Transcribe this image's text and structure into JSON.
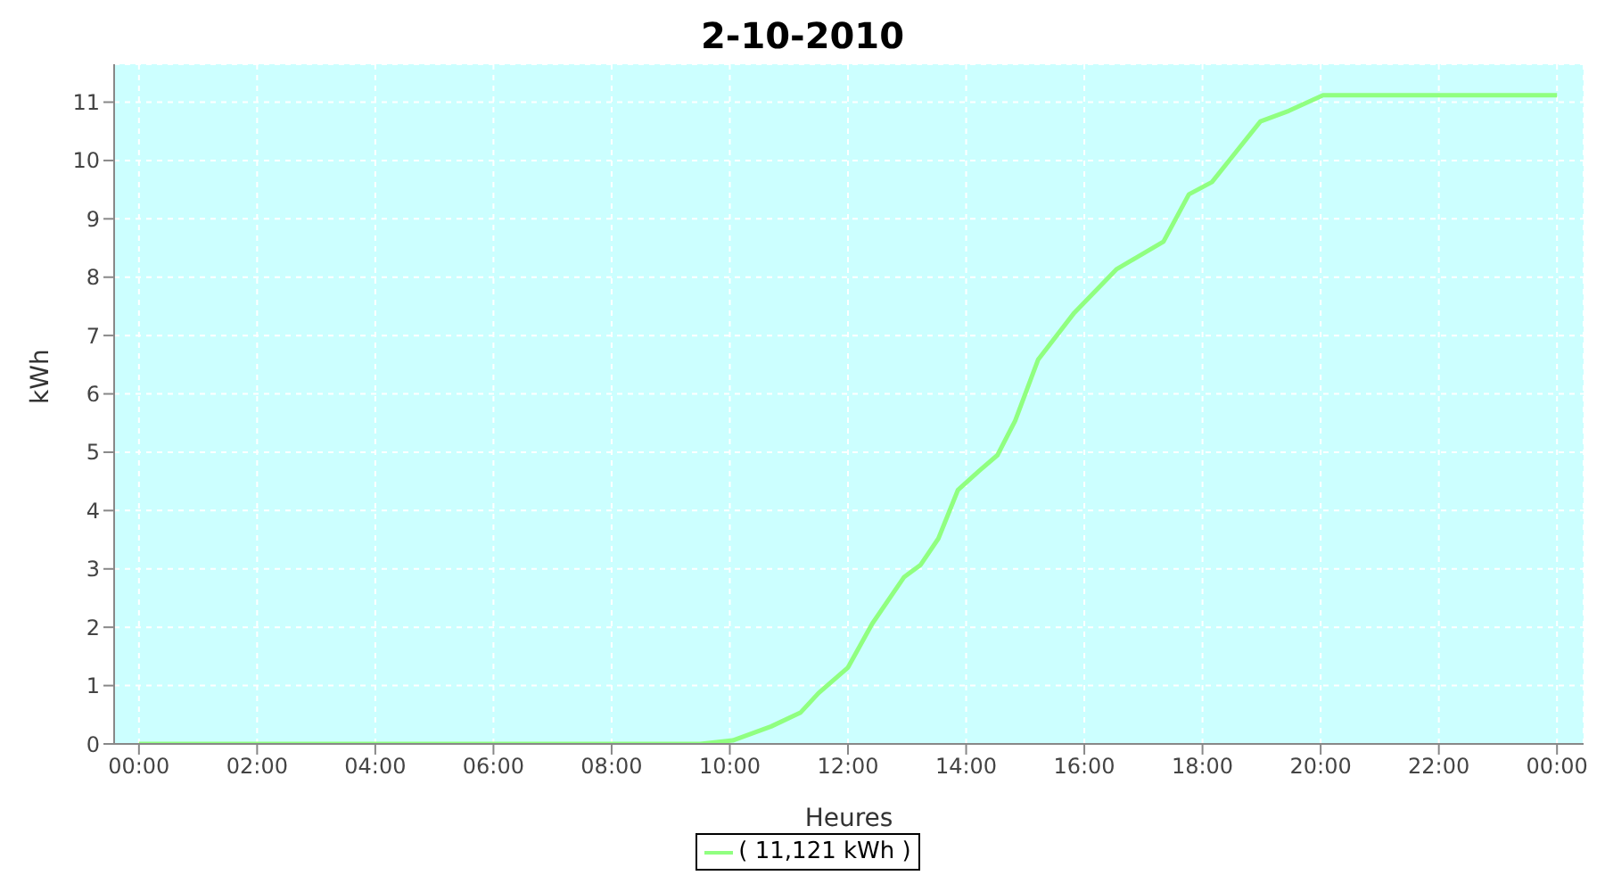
{
  "chart_data": {
    "type": "line",
    "title": "2-10-2010",
    "xlabel": "Heures",
    "ylabel": "kWh",
    "xlim": [
      -0.42,
      24.45
    ],
    "ylim": [
      0,
      11.65
    ],
    "xticks": [
      {
        "value": 0,
        "label": "00:00"
      },
      {
        "value": 2,
        "label": "02:00"
      },
      {
        "value": 4,
        "label": "04:00"
      },
      {
        "value": 6,
        "label": "06:00"
      },
      {
        "value": 8,
        "label": "08:00"
      },
      {
        "value": 10,
        "label": "10:00"
      },
      {
        "value": 12,
        "label": "12:00"
      },
      {
        "value": 14,
        "label": "14:00"
      },
      {
        "value": 16,
        "label": "16:00"
      },
      {
        "value": 18,
        "label": "18:00"
      },
      {
        "value": 20,
        "label": "20:00"
      },
      {
        "value": 22,
        "label": "22:00"
      },
      {
        "value": 24,
        "label": "00:00"
      }
    ],
    "yticks": [
      0,
      1,
      2,
      3,
      4,
      5,
      6,
      7,
      8,
      9,
      10,
      11
    ],
    "x": [
      0,
      9.5,
      10.05,
      10.7,
      11.2,
      11.5,
      12.0,
      12.41,
      12.95,
      13.23,
      13.53,
      13.86,
      14.22,
      14.53,
      14.83,
      15.22,
      15.83,
      16.55,
      17.34,
      17.77,
      18.16,
      18.46,
      18.98,
      19.46,
      20.04,
      24
    ],
    "series": [
      {
        "name": "( 11,121 kWh )",
        "color": "#90ff80",
        "values": [
          0,
          0,
          0.06,
          0.3,
          0.54,
          0.87,
          1.31,
          2.06,
          2.86,
          3.07,
          3.52,
          4.35,
          4.68,
          4.95,
          5.54,
          6.59,
          7.39,
          8.14,
          8.61,
          9.42,
          9.63,
          10.01,
          10.67,
          10.85,
          11.12,
          11.12
        ]
      }
    ],
    "grid": true,
    "legend": "bottom",
    "marker": "none",
    "line_style": "solid"
  }
}
